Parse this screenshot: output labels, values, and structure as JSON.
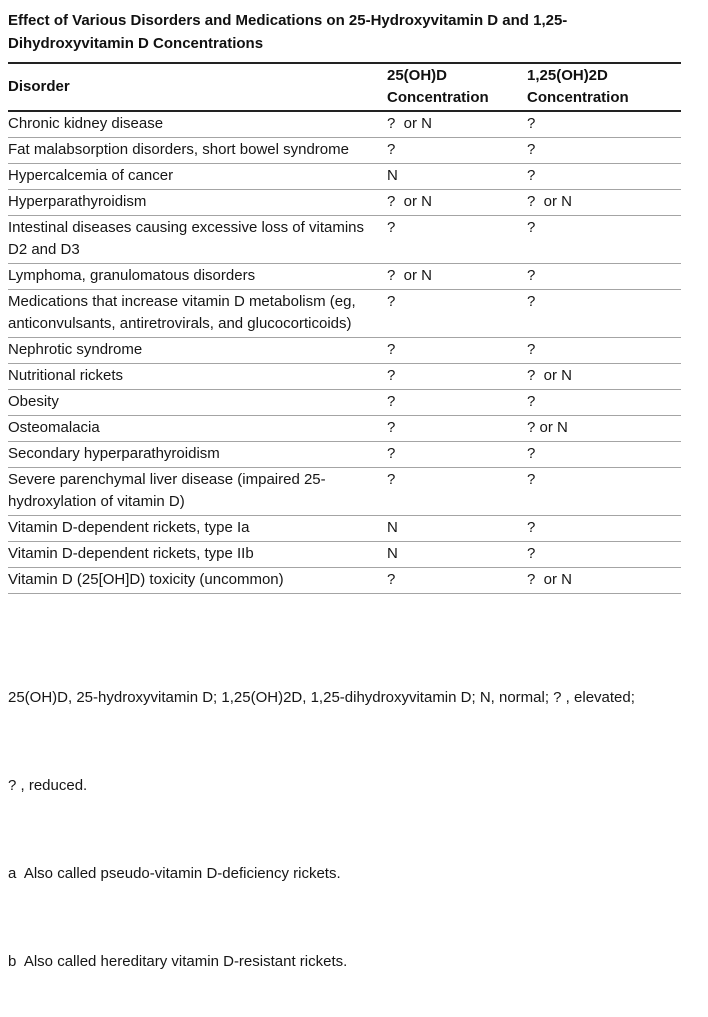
{
  "title": {
    "line1": "Effect of Various Disorders and Medications on 25-Hydroxyvitamin D and 1,25-",
    "line2": "Dihydroxyvitamin D Concentrations"
  },
  "table": {
    "columns": [
      "Disorder",
      "25(OH)D Concentration",
      "1,25(OH)2D Concentration"
    ],
    "rows": [
      {
        "disorder": "Chronic kidney disease",
        "c25": "?  or N",
        "c125": "?"
      },
      {
        "disorder": "Fat malabsorption disorders, short bowel syndrome",
        "c25": "?",
        "c125": "?"
      },
      {
        "disorder": "Hypercalcemia of cancer",
        "c25": "N",
        "c125": "?"
      },
      {
        "disorder": "Hyperparathyroidism",
        "c25": "?  or N",
        "c125": "?  or N"
      },
      {
        "disorder": "Intestinal diseases causing excessive loss of vitamins D2 and D3",
        "c25": "?",
        "c125": "?"
      },
      {
        "disorder": "Lymphoma, granulomatous disorders",
        "c25": "?  or N",
        "c125": "?"
      },
      {
        "disorder": "Medications that increase vitamin D metabolism (eg, anticonvulsants, antiretrovirals, and glucocorticoids)",
        "c25": "?",
        "c125": "?"
      },
      {
        "disorder": "Nephrotic syndrome",
        "c25": "?",
        "c125": "?"
      },
      {
        "disorder": "Nutritional rickets",
        "c25": "?",
        "c125": "?  or N"
      },
      {
        "disorder": "Obesity",
        "c25": "?",
        "c125": "?"
      },
      {
        "disorder": "Osteomalacia",
        "c25": "?",
        "c125": "? or N"
      },
      {
        "disorder": "Secondary hyperparathyroidism",
        "c25": "?",
        "c125": "?"
      },
      {
        "disorder": "Severe parenchymal liver disease (impaired 25-hydroxylation of vitamin D)",
        "c25": "?",
        "c125": "?"
      },
      {
        "disorder": "Vitamin D-dependent rickets, type Ia",
        "c25": "N",
        "c125": "?"
      },
      {
        "disorder": "Vitamin D-dependent rickets, type IIb",
        "c25": "N",
        "c125": "?"
      },
      {
        "disorder": "Vitamin D (25[OH]D) toxicity (uncommon)",
        "c25": "?",
        "c125": "?  or N"
      }
    ]
  },
  "footnotes": [
    "25(OH)D, 25-hydroxyvitamin D; 1,25(OH)2D, 1,25-dihydroxyvitamin D; N, normal; ? , elevated;",
    "? , reduced.",
    "a  Also called pseudo-vitamin D-deficiency rickets.",
    "b  Also called hereditary vitamin D-resistant rickets."
  ]
}
